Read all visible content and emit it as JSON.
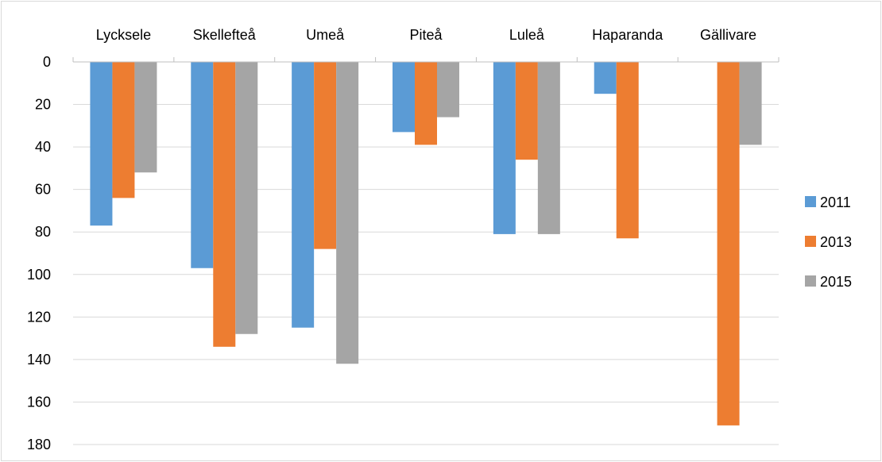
{
  "chart_data": {
    "type": "bar",
    "orientation": "vertical-downward",
    "categories": [
      "Lycksele",
      "Skellefteå",
      "Umeå",
      "Piteå",
      "Luleå",
      "Haparanda",
      "Gällivare"
    ],
    "series": [
      {
        "name": "2011",
        "color": "#5B9BD5",
        "values": [
          77,
          97,
          125,
          33,
          81,
          15,
          null
        ]
      },
      {
        "name": "2013",
        "color": "#ED7D31",
        "values": [
          64,
          134,
          88,
          39,
          46,
          83,
          171
        ]
      },
      {
        "name": "2015",
        "color": "#A5A5A5",
        "values": [
          52,
          128,
          142,
          26,
          81,
          null,
          39
        ]
      }
    ],
    "ylim": [
      0,
      180
    ],
    "y_ticks": [
      0,
      20,
      40,
      60,
      80,
      100,
      120,
      140,
      160,
      180
    ],
    "y_tick_labels": [
      "0",
      "20",
      "40",
      "60",
      "80",
      "100",
      "120",
      "140",
      "160",
      "180"
    ],
    "y_axis_reversed": true,
    "category_axis_position": "top",
    "grid": true,
    "legend": "right",
    "title": "",
    "xlabel": "",
    "ylabel": ""
  }
}
